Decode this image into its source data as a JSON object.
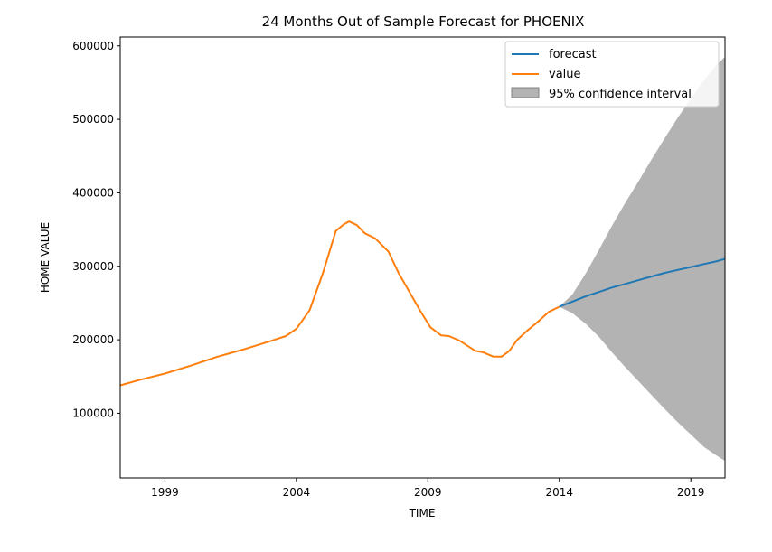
{
  "chart_data": {
    "type": "line",
    "title": "24 Months Out of Sample Forecast for PHOENIX",
    "xlabel": "TIME",
    "ylabel": "HOME VALUE",
    "xlim": [
      1997.3,
      2020.3
    ],
    "ylim": [
      12000,
      612000
    ],
    "x_ticks": [
      1999,
      2004,
      2009,
      2014,
      2019
    ],
    "y_ticks": [
      100000,
      200000,
      300000,
      400000,
      500000,
      600000
    ],
    "grid": false,
    "legend_position": "top-right",
    "colors": {
      "forecast": "#1f77b4",
      "value": "#ff7f0e",
      "ci": "#808080"
    },
    "series": [
      {
        "name": "value",
        "x": [
          1997.3,
          1998,
          1999,
          2000,
          2001,
          2002,
          2003,
          2003.6,
          2004,
          2004.5,
          2005,
          2005.5,
          2005.8,
          2006,
          2006.3,
          2006.6,
          2007,
          2007.5,
          2007.9,
          2008.3,
          2008.7,
          2009.1,
          2009.5,
          2009.8,
          2010.2,
          2010.5,
          2010.8,
          2011.1,
          2011.5,
          2011.8,
          2012.1,
          2012.4,
          2012.8,
          2013.2,
          2013.6,
          2014
        ],
        "y": [
          138000,
          145000,
          154000,
          165000,
          177000,
          187000,
          198000,
          205000,
          215000,
          240000,
          290000,
          348000,
          357000,
          361000,
          356000,
          345000,
          338000,
          320000,
          290000,
          265000,
          240000,
          217000,
          206000,
          205000,
          199000,
          192000,
          185000,
          183000,
          177000,
          177000,
          185000,
          200000,
          213000,
          225000,
          238000,
          245000
        ]
      },
      {
        "name": "forecast",
        "x": [
          2014,
          2014.5,
          2015,
          2015.5,
          2016,
          2016.5,
          2017,
          2017.5,
          2018,
          2018.5,
          2019,
          2019.5,
          2020,
          2020.3
        ],
        "y": [
          245000,
          252000,
          259000,
          265000,
          271000,
          276000,
          281000,
          286000,
          291000,
          295000,
          299000,
          303000,
          307000,
          310000
        ]
      }
    ],
    "confidence_interval": {
      "name": "95% confidence interval",
      "x": [
        2014,
        2014.5,
        2015,
        2015.5,
        2016,
        2016.5,
        2017,
        2017.5,
        2018,
        2018.5,
        2019,
        2019.5,
        2020,
        2020.3
      ],
      "upper": [
        245000,
        262000,
        290000,
        322000,
        355000,
        386000,
        415000,
        445000,
        474000,
        502000,
        528000,
        553000,
        575000,
        585000
      ],
      "lower": [
        245000,
        236000,
        222000,
        204000,
        183000,
        163000,
        144000,
        125000,
        106000,
        88000,
        71000,
        54000,
        42000,
        35000
      ]
    },
    "legend": [
      "forecast",
      "value",
      "95% confidence interval"
    ]
  }
}
